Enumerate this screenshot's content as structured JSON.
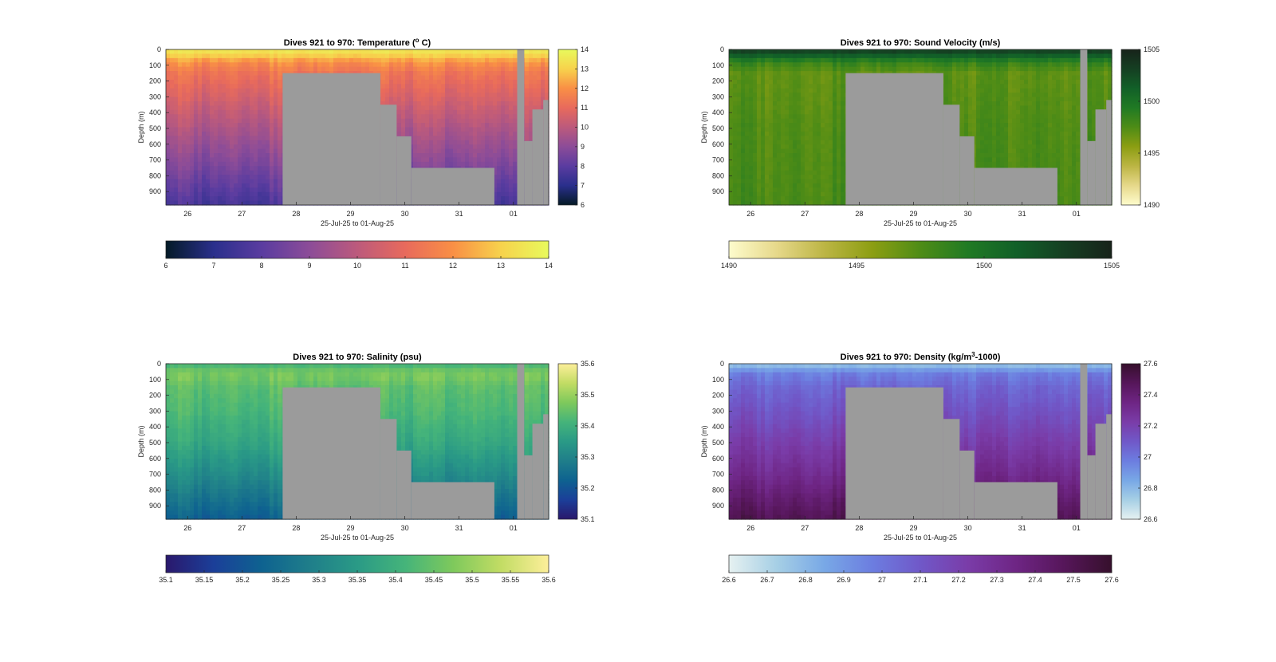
{
  "figure": {
    "background": "#ffffff",
    "mask_color": "#9b9b9b"
  },
  "chart_data": [
    {
      "type": "heatmap",
      "title": "Dives 921 to 970: Temperature (° C)",
      "title_parts": [
        "Dives 921 to 970: Temperature (",
        "o",
        " C)"
      ],
      "xlabel": "25-Jul-25 to 01-Aug-25",
      "ylabel": "Depth (m)",
      "x_tick_labels": [
        "26",
        "27",
        "28",
        "29",
        "30",
        "31",
        "01"
      ],
      "y_tick_labels": [
        "0",
        "100",
        "200",
        "300",
        "400",
        "500",
        "600",
        "700",
        "800",
        "900"
      ],
      "xlim": [
        25.6,
        32.65
      ],
      "ylim": [
        0,
        985
      ],
      "colormap": "thermal",
      "colormap_stops": [
        "#041a26",
        "#2a2f8c",
        "#5a3ca0",
        "#8c4c98",
        "#bc5a7c",
        "#e86a5c",
        "#f98f45",
        "#f7d24c",
        "#e8fa5c"
      ],
      "clim": [
        6,
        14
      ],
      "side_colorbar_ticks": [
        "6",
        "7",
        "8",
        "9",
        "10",
        "11",
        "12",
        "13",
        "14"
      ],
      "bottom_colorbar_ticks": [
        "6",
        "7",
        "8",
        "9",
        "10",
        "11",
        "12",
        "13",
        "14"
      ],
      "profile": {
        "depth": [
          0,
          30,
          80,
          150,
          300,
          500,
          700,
          900,
          985
        ],
        "value": [
          13.6,
          13.2,
          12.0,
          11.3,
          10.6,
          9.7,
          8.9,
          8.0,
          7.6
        ]
      },
      "mask": [
        {
          "x0": 27.75,
          "x1": 29.55,
          "depth_top": 150
        },
        {
          "x0": 29.55,
          "x1": 29.85,
          "depth_top": 350
        },
        {
          "x0": 29.85,
          "x1": 30.12,
          "depth_top": 550
        },
        {
          "x0": 30.12,
          "x1": 31.65,
          "depth_top": 750
        },
        {
          "x0": 31.65,
          "x1": 32.07,
          "depth_top": 985
        },
        {
          "x0": 32.07,
          "x1": 32.2,
          "depth_top": 0
        },
        {
          "x0": 32.2,
          "x1": 32.35,
          "depth_top": 580
        },
        {
          "x0": 32.35,
          "x1": 32.55,
          "depth_top": 380
        },
        {
          "x0": 32.55,
          "x1": 32.65,
          "depth_top": 320
        }
      ]
    },
    {
      "type": "heatmap",
      "title": "Dives 921 to 970: Sound Velocity (m/s)",
      "title_parts": [
        "Dives 921 to 970: Sound Velocity (m/s)"
      ],
      "xlabel": "25-Jul-25 to 01-Aug-25",
      "ylabel": "Depth (m)",
      "x_tick_labels": [
        "26",
        "27",
        "28",
        "29",
        "30",
        "31",
        "01"
      ],
      "y_tick_labels": [
        "0",
        "100",
        "200",
        "300",
        "400",
        "500",
        "600",
        "700",
        "800",
        "900"
      ],
      "xlim": [
        25.6,
        32.65
      ],
      "ylim": [
        0,
        985
      ],
      "colormap": "speed",
      "colormap_stops": [
        "#fefccd",
        "#e6d88a",
        "#bcb544",
        "#8c9e12",
        "#4e8c16",
        "#207a24",
        "#126028",
        "#153f22",
        "#17231a"
      ],
      "clim": [
        1490,
        1505
      ],
      "side_colorbar_ticks": [
        "1490",
        "1495",
        "1500",
        "1505"
      ],
      "bottom_colorbar_ticks": [
        "1490",
        "1495",
        "1500",
        "1505"
      ],
      "profile": {
        "depth": [
          0,
          30,
          80,
          150,
          300,
          500,
          700,
          900,
          985
        ],
        "value": [
          1503.5,
          1502.0,
          1498.5,
          1497.0,
          1497.2,
          1497.5,
          1497.6,
          1497.7,
          1497.8
        ]
      },
      "mask": [
        {
          "x0": 27.75,
          "x1": 29.55,
          "depth_top": 150
        },
        {
          "x0": 29.55,
          "x1": 29.85,
          "depth_top": 350
        },
        {
          "x0": 29.85,
          "x1": 30.12,
          "depth_top": 550
        },
        {
          "x0": 30.12,
          "x1": 31.65,
          "depth_top": 750
        },
        {
          "x0": 31.65,
          "x1": 32.07,
          "depth_top": 985
        },
        {
          "x0": 32.07,
          "x1": 32.2,
          "depth_top": 0
        },
        {
          "x0": 32.2,
          "x1": 32.35,
          "depth_top": 580
        },
        {
          "x0": 32.35,
          "x1": 32.55,
          "depth_top": 380
        },
        {
          "x0": 32.55,
          "x1": 32.65,
          "depth_top": 320
        }
      ]
    },
    {
      "type": "heatmap",
      "title": "Dives 921 to 970: Salinity (psu)",
      "title_parts": [
        "Dives 921 to 970: Salinity (psu)"
      ],
      "xlabel": "25-Jul-25 to 01-Aug-25",
      "ylabel": "Depth (m)",
      "x_tick_labels": [
        "26",
        "27",
        "28",
        "29",
        "30",
        "31",
        "01"
      ],
      "y_tick_labels": [
        "0",
        "100",
        "200",
        "300",
        "400",
        "500",
        "600",
        "700",
        "800",
        "900"
      ],
      "xlim": [
        25.6,
        32.65
      ],
      "ylim": [
        0,
        985
      ],
      "colormap": "haline",
      "colormap_stops": [
        "#2a186c",
        "#1b3f99",
        "#0e6290",
        "#1f7e8a",
        "#2a9a86",
        "#45b47a",
        "#7ec95c",
        "#c2dc64",
        "#fdef9a"
      ],
      "clim": [
        35.1,
        35.6
      ],
      "side_colorbar_ticks": [
        "35.1",
        "35.2",
        "35.3",
        "35.4",
        "35.5",
        "35.6"
      ],
      "bottom_colorbar_ticks": [
        "35.1",
        "35.15",
        "35.2",
        "35.25",
        "35.3",
        "35.35",
        "35.4",
        "35.45",
        "35.5",
        "35.55",
        "35.6"
      ],
      "profile": {
        "depth": [
          0,
          30,
          80,
          150,
          300,
          500,
          700,
          900,
          985
        ],
        "value": [
          35.4,
          35.45,
          35.47,
          35.44,
          35.42,
          35.38,
          35.32,
          35.25,
          35.22
        ]
      },
      "mask": [
        {
          "x0": 27.75,
          "x1": 29.55,
          "depth_top": 150
        },
        {
          "x0": 29.55,
          "x1": 29.85,
          "depth_top": 350
        },
        {
          "x0": 29.85,
          "x1": 30.12,
          "depth_top": 550
        },
        {
          "x0": 30.12,
          "x1": 31.65,
          "depth_top": 750
        },
        {
          "x0": 31.65,
          "x1": 32.07,
          "depth_top": 985
        },
        {
          "x0": 32.07,
          "x1": 32.2,
          "depth_top": 0
        },
        {
          "x0": 32.2,
          "x1": 32.35,
          "depth_top": 580
        },
        {
          "x0": 32.35,
          "x1": 32.55,
          "depth_top": 380
        },
        {
          "x0": 32.55,
          "x1": 32.65,
          "depth_top": 320
        }
      ]
    },
    {
      "type": "heatmap",
      "title": "Dives 921 to 970: Density (kg/m3-1000)",
      "title_parts": [
        "Dives 921 to 970: Density (kg/m",
        "3",
        "-1000)"
      ],
      "xlabel": "25-Jul-25 to 01-Aug-25",
      "ylabel": "Depth (m)",
      "x_tick_labels": [
        "26",
        "27",
        "28",
        "29",
        "30",
        "31",
        "01"
      ],
      "y_tick_labels": [
        "0",
        "100",
        "200",
        "300",
        "400",
        "500",
        "600",
        "700",
        "800",
        "900"
      ],
      "xlim": [
        25.6,
        32.65
      ],
      "ylim": [
        0,
        985
      ],
      "colormap": "dense",
      "colormap_stops": [
        "#e6f1f1",
        "#a6cfe5",
        "#78a8e6",
        "#6c7de0",
        "#7058c8",
        "#7a3ca8",
        "#6e2584",
        "#56165a",
        "#36102c"
      ],
      "clim": [
        26.6,
        27.6
      ],
      "side_colorbar_ticks": [
        "26.6",
        "26.8",
        "27",
        "27.2",
        "27.4",
        "27.6"
      ],
      "bottom_colorbar_ticks": [
        "26.6",
        "26.7",
        "26.8",
        "26.9",
        "27",
        "27.1",
        "27.2",
        "27.3",
        "27.4",
        "27.5",
        "27.6"
      ],
      "profile": {
        "depth": [
          0,
          30,
          60,
          150,
          300,
          500,
          700,
          900,
          985
        ],
        "value": [
          26.75,
          26.85,
          26.97,
          27.05,
          27.12,
          27.22,
          27.32,
          27.45,
          27.5
        ]
      },
      "mask": [
        {
          "x0": 27.75,
          "x1": 29.55,
          "depth_top": 150
        },
        {
          "x0": 29.55,
          "x1": 29.85,
          "depth_top": 350
        },
        {
          "x0": 29.85,
          "x1": 30.12,
          "depth_top": 550
        },
        {
          "x0": 30.12,
          "x1": 31.65,
          "depth_top": 750
        },
        {
          "x0": 31.65,
          "x1": 32.07,
          "depth_top": 985
        },
        {
          "x0": 32.07,
          "x1": 32.2,
          "depth_top": 0
        },
        {
          "x0": 32.2,
          "x1": 32.35,
          "depth_top": 580
        },
        {
          "x0": 32.35,
          "x1": 32.55,
          "depth_top": 380
        },
        {
          "x0": 32.55,
          "x1": 32.65,
          "depth_top": 320
        }
      ]
    }
  ]
}
